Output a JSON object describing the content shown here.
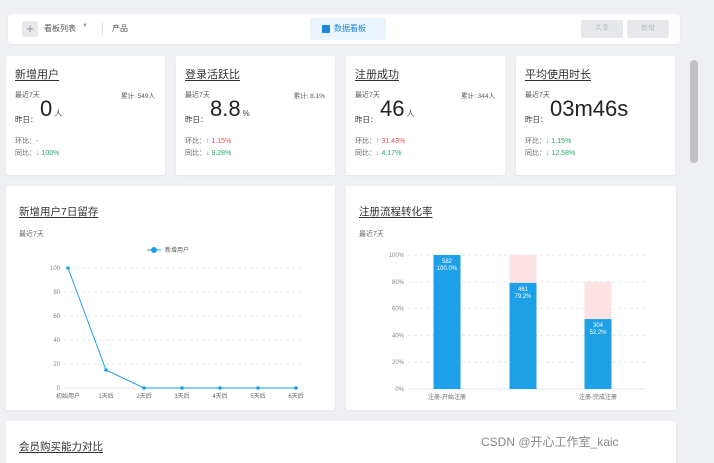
{
  "topbar": {
    "board_label": "看板列表",
    "product_label": "产品",
    "tab_label": "数据看板",
    "btn1": "共享",
    "btn2": "新增"
  },
  "kpis": [
    {
      "title": "新增用户",
      "period": "最近7天",
      "total": "累计: 549人",
      "yday_label": "昨日：",
      "value": "0",
      "unit": "人",
      "ring_label": "环比：",
      "ring_val": "-",
      "ring_dir": "",
      "yoy_label": "同比：",
      "yoy_val": "100%",
      "yoy_dir": "down"
    },
    {
      "title": "登录活跃比",
      "period": "最近7天",
      "total": "累计: 8.1%",
      "yday_label": "昨日：",
      "value": "8.8",
      "unit": "%",
      "ring_label": "环比：",
      "ring_val": "1.15%",
      "ring_dir": "up",
      "yoy_label": "同比：",
      "yoy_val": "9.28%",
      "yoy_dir": "down"
    },
    {
      "title": "注册成功",
      "period": "最近7天",
      "total": "累计: 344人",
      "yday_label": "昨日：",
      "value": "46",
      "unit": "人",
      "ring_label": "环比：",
      "ring_val": "31.43%",
      "ring_dir": "up",
      "yoy_label": "同比：",
      "yoy_val": "4.17%",
      "yoy_dir": "down"
    },
    {
      "title": "平均使用时长",
      "period": "最近7天",
      "total": "",
      "yday_label": "昨日：",
      "value": "03m46s",
      "unit": "",
      "ring_label": "环比：",
      "ring_val": "1.15%",
      "ring_dir": "down",
      "yoy_label": "同比：",
      "yoy_val": "12.58%",
      "yoy_dir": "down"
    }
  ],
  "retention": {
    "title": "新增用户7日留存",
    "period": "最近7天"
  },
  "funnel": {
    "title": "注册流程转化率",
    "period": "最近7天"
  },
  "bottom": {
    "title": "会员购买能力对比"
  },
  "watermark": "CSDN @开心工作室_kaic",
  "colors": {
    "accent": "#1ea0e6",
    "ghost": "#fde2e4",
    "up": "#e24c4c",
    "down": "#27a862"
  },
  "chart_data": [
    {
      "type": "line",
      "x": [
        "初始用户",
        "1天后",
        "2天后",
        "3天后",
        "4天后",
        "5天后",
        "6天后"
      ],
      "series": [
        {
          "name": "新增用户",
          "values": [
            100,
            15,
            0,
            0,
            0,
            0,
            0
          ]
        }
      ],
      "ylim": [
        0,
        100
      ],
      "yticks": [
        0,
        20,
        40,
        60,
        80,
        100
      ],
      "legend": "top-center",
      "grid": true
    },
    {
      "type": "bar",
      "categories": [
        "注册-开始注册",
        "",
        "注册-完成注册"
      ],
      "series": [
        {
          "name": "",
          "values": [
            100,
            79.2,
            52.2
          ],
          "labels": [
            "582\n100.0%",
            "461\n79.2%",
            "304\n52.2%"
          ]
        },
        {
          "name": "",
          "values": [
            0,
            100,
            80
          ]
        }
      ],
      "ylim": [
        0,
        100
      ],
      "yticks": [
        "0%",
        "20%",
        "40%",
        "60%",
        "80%",
        "100%"
      ],
      "grid": true
    }
  ]
}
